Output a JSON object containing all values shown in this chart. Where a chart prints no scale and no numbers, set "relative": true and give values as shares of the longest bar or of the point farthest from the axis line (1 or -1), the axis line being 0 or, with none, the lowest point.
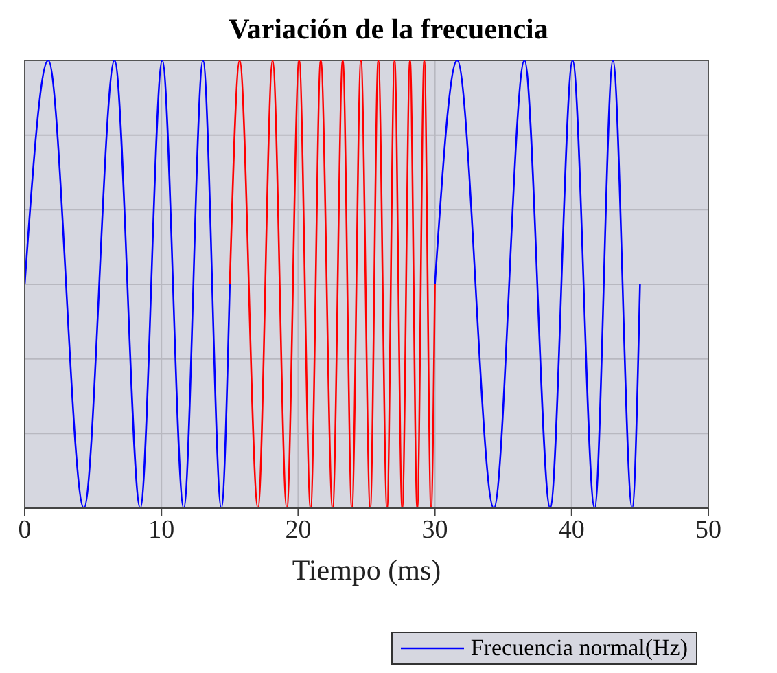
{
  "chart_data": {
    "type": "line",
    "title": "Variación de la frecuencia",
    "xlabel": "Tiempo (ms)",
    "relative": true,
    "xlim": [
      0,
      50
    ],
    "xticks": [
      0,
      10,
      20,
      30,
      40,
      50
    ],
    "tick_labels": "x",
    "grid": true,
    "legend": "bottom right",
    "marker": "none",
    "line_style": "solid",
    "series": [
      {
        "name": "Frecuencia normal(Hz)",
        "color": "#0000ff",
        "x": [
          0,
          1.72,
          4.33,
          6.57,
          8.45,
          10.06,
          11.63,
          13.04,
          14.38,
          15,
          22.5,
          30,
          31.63,
          34.31,
          36.55,
          38.43,
          40.07,
          41.68,
          43.02,
          44.43,
          45
        ],
        "values": [
          0.5,
          1,
          0,
          1,
          0,
          1,
          0,
          1,
          0,
          0.5,
          null,
          0.5,
          1,
          0,
          1,
          0,
          1,
          0,
          1,
          0,
          0.5
        ]
      },
      {
        "color": "#ff0000",
        "x": [
          15,
          15.72,
          17.06,
          18.13,
          19.17,
          20.07,
          20.91,
          21.65,
          22.52,
          23.26,
          23.93,
          24.59,
          25.27,
          25.86,
          26.5,
          27.05,
          27.61,
          28.18,
          28.71,
          29.22,
          29.72,
          30
        ],
        "values": [
          0.5,
          1,
          0,
          1,
          0,
          1,
          0,
          1,
          0,
          1,
          0,
          1,
          0,
          1,
          0,
          1,
          0,
          1,
          0,
          1,
          0,
          0.5
        ]
      }
    ]
  }
}
